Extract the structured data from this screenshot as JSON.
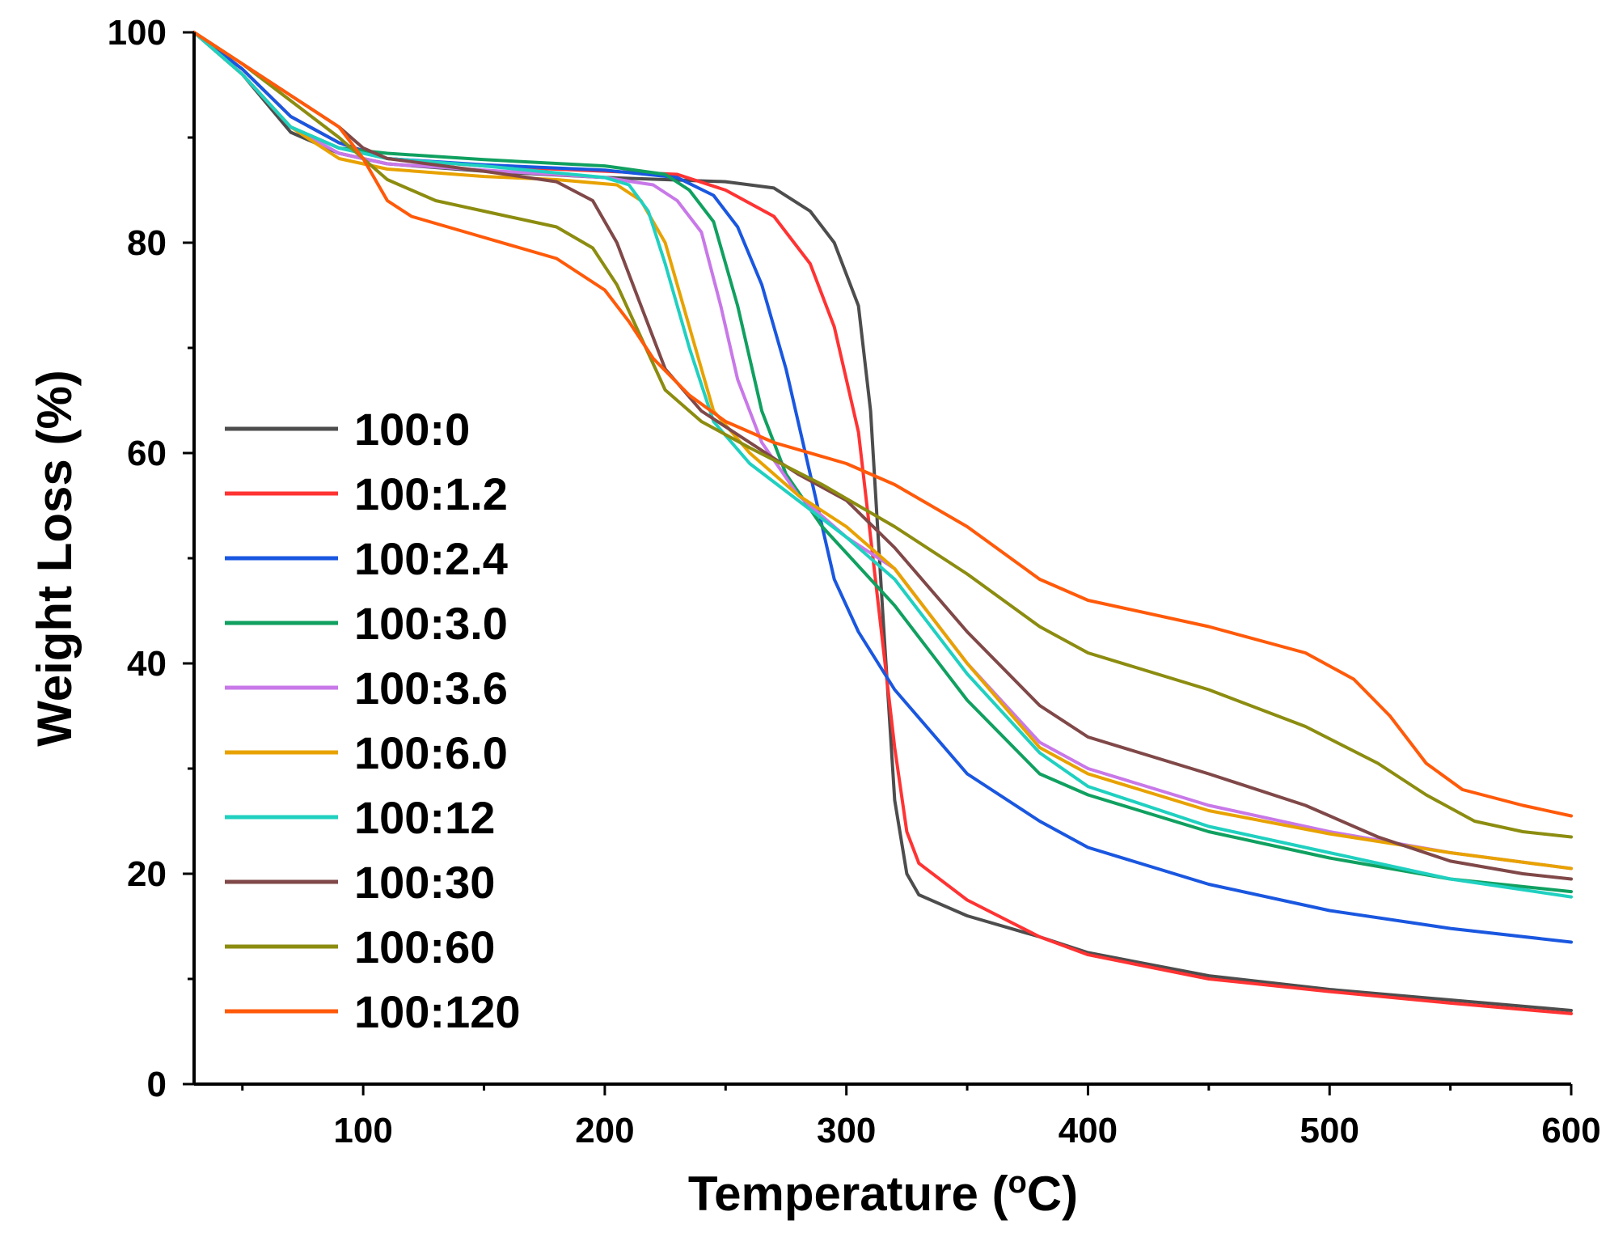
{
  "chart_data": {
    "type": "line",
    "title": "",
    "xlabel": "Temperature (",
    "xlabel_unit": "o",
    "xlabel_tail": "C)",
    "ylabel": "Weight Loss (%)",
    "xlim": [
      30,
      600
    ],
    "ylim": [
      0,
      100
    ],
    "x_ticks": [
      100,
      200,
      300,
      400,
      500,
      600
    ],
    "x_tick_labels": [
      "100",
      "200",
      "300",
      "400",
      "500",
      "600"
    ],
    "y_ticks": [
      0,
      20,
      40,
      60,
      80,
      100
    ],
    "y_tick_labels": [
      "0",
      "20",
      "40",
      "60",
      "80",
      "100"
    ],
    "legend_position": "left",
    "series": [
      {
        "name": "100:0",
        "color": "#4d4d4d",
        "points": [
          [
            30,
            100
          ],
          [
            50,
            96
          ],
          [
            70,
            90.5
          ],
          [
            90,
            88.5
          ],
          [
            110,
            87.5
          ],
          [
            150,
            86.8
          ],
          [
            200,
            86.2
          ],
          [
            250,
            85.8
          ],
          [
            270,
            85.2
          ],
          [
            285,
            83
          ],
          [
            295,
            80
          ],
          [
            305,
            74
          ],
          [
            310,
            64
          ],
          [
            315,
            45
          ],
          [
            320,
            27
          ],
          [
            325,
            20
          ],
          [
            330,
            18
          ],
          [
            350,
            16
          ],
          [
            380,
            14
          ],
          [
            400,
            12.5
          ],
          [
            450,
            10.3
          ],
          [
            500,
            9
          ],
          [
            550,
            8
          ],
          [
            600,
            7
          ]
        ]
      },
      {
        "name": "100:1.2",
        "color": "#ff3333",
        "points": [
          [
            30,
            100
          ],
          [
            50,
            96.5
          ],
          [
            70,
            92
          ],
          [
            90,
            89.5
          ],
          [
            110,
            88
          ],
          [
            150,
            87.3
          ],
          [
            200,
            86.8
          ],
          [
            230,
            86.5
          ],
          [
            250,
            85
          ],
          [
            270,
            82.5
          ],
          [
            285,
            78
          ],
          [
            295,
            72
          ],
          [
            305,
            62
          ],
          [
            310,
            52
          ],
          [
            315,
            42
          ],
          [
            320,
            32
          ],
          [
            325,
            24
          ],
          [
            330,
            21
          ],
          [
            350,
            17.5
          ],
          [
            380,
            14
          ],
          [
            400,
            12.3
          ],
          [
            450,
            10
          ],
          [
            500,
            8.8
          ],
          [
            550,
            7.7
          ],
          [
            600,
            6.7
          ]
        ]
      },
      {
        "name": "100:2.4",
        "color": "#1a57e0",
        "points": [
          [
            30,
            100
          ],
          [
            50,
            96.5
          ],
          [
            70,
            92
          ],
          [
            90,
            89.5
          ],
          [
            110,
            88
          ],
          [
            150,
            87.4
          ],
          [
            200,
            86.9
          ],
          [
            230,
            86.2
          ],
          [
            245,
            84.5
          ],
          [
            255,
            81.5
          ],
          [
            265,
            76
          ],
          [
            275,
            68
          ],
          [
            285,
            58
          ],
          [
            295,
            48
          ],
          [
            305,
            43
          ],
          [
            320,
            37.5
          ],
          [
            350,
            29.5
          ],
          [
            380,
            25
          ],
          [
            400,
            22.5
          ],
          [
            450,
            19
          ],
          [
            500,
            16.5
          ],
          [
            550,
            14.8
          ],
          [
            600,
            13.5
          ]
        ]
      },
      {
        "name": "100:3.0",
        "color": "#10a060",
        "points": [
          [
            30,
            100
          ],
          [
            50,
            96
          ],
          [
            70,
            91
          ],
          [
            90,
            89
          ],
          [
            110,
            88.5
          ],
          [
            150,
            87.9
          ],
          [
            200,
            87.3
          ],
          [
            225,
            86.5
          ],
          [
            235,
            85
          ],
          [
            245,
            82
          ],
          [
            255,
            74
          ],
          [
            265,
            64
          ],
          [
            275,
            58
          ],
          [
            290,
            53
          ],
          [
            300,
            50.5
          ],
          [
            320,
            45.5
          ],
          [
            350,
            36.5
          ],
          [
            380,
            29.5
          ],
          [
            400,
            27.5
          ],
          [
            450,
            24
          ],
          [
            500,
            21.5
          ],
          [
            550,
            19.5
          ],
          [
            600,
            18.3
          ]
        ]
      },
      {
        "name": "100:3.6",
        "color": "#c878e8",
        "points": [
          [
            30,
            100
          ],
          [
            50,
            96
          ],
          [
            70,
            91
          ],
          [
            90,
            88.5
          ],
          [
            110,
            87.5
          ],
          [
            150,
            86.9
          ],
          [
            200,
            86.2
          ],
          [
            220,
            85.5
          ],
          [
            230,
            84
          ],
          [
            240,
            81
          ],
          [
            248,
            74
          ],
          [
            255,
            67
          ],
          [
            265,
            61
          ],
          [
            280,
            56
          ],
          [
            300,
            52
          ],
          [
            320,
            49
          ],
          [
            350,
            40
          ],
          [
            380,
            32.5
          ],
          [
            400,
            30
          ],
          [
            450,
            26.5
          ],
          [
            500,
            24
          ],
          [
            550,
            22
          ],
          [
            600,
            20.5
          ]
        ]
      },
      {
        "name": "100:6.0",
        "color": "#e8a200",
        "points": [
          [
            30,
            100
          ],
          [
            50,
            96
          ],
          [
            70,
            91
          ],
          [
            90,
            88
          ],
          [
            110,
            87
          ],
          [
            150,
            86.3
          ],
          [
            180,
            86
          ],
          [
            205,
            85.5
          ],
          [
            215,
            84
          ],
          [
            225,
            80
          ],
          [
            235,
            72
          ],
          [
            245,
            64
          ],
          [
            260,
            60
          ],
          [
            280,
            56
          ],
          [
            300,
            53
          ],
          [
            320,
            49
          ],
          [
            350,
            40
          ],
          [
            380,
            32
          ],
          [
            400,
            29.5
          ],
          [
            450,
            26
          ],
          [
            500,
            23.8
          ],
          [
            550,
            22
          ],
          [
            600,
            20.5
          ]
        ]
      },
      {
        "name": "100:12",
        "color": "#20d0c0",
        "points": [
          [
            30,
            100
          ],
          [
            50,
            96
          ],
          [
            70,
            91
          ],
          [
            90,
            89
          ],
          [
            110,
            88
          ],
          [
            150,
            87.3
          ],
          [
            200,
            86.2
          ],
          [
            210,
            85.5
          ],
          [
            218,
            83
          ],
          [
            225,
            78
          ],
          [
            235,
            70
          ],
          [
            245,
            63
          ],
          [
            260,
            59
          ],
          [
            280,
            55.5
          ],
          [
            300,
            52
          ],
          [
            320,
            48
          ],
          [
            350,
            39
          ],
          [
            380,
            31.5
          ],
          [
            400,
            28.3
          ],
          [
            450,
            24.5
          ],
          [
            500,
            22
          ],
          [
            550,
            19.5
          ],
          [
            600,
            17.8
          ]
        ]
      },
      {
        "name": "100:30",
        "color": "#804848",
        "points": [
          [
            30,
            100
          ],
          [
            50,
            97
          ],
          [
            70,
            94
          ],
          [
            90,
            91
          ],
          [
            100,
            89
          ],
          [
            110,
            88
          ],
          [
            150,
            86.8
          ],
          [
            180,
            85.8
          ],
          [
            195,
            84
          ],
          [
            205,
            80
          ],
          [
            215,
            74
          ],
          [
            225,
            68
          ],
          [
            240,
            64
          ],
          [
            260,
            61
          ],
          [
            280,
            58
          ],
          [
            300,
            55.5
          ],
          [
            320,
            51
          ],
          [
            350,
            43
          ],
          [
            380,
            36
          ],
          [
            400,
            33
          ],
          [
            450,
            29.5
          ],
          [
            490,
            26.5
          ],
          [
            520,
            23.5
          ],
          [
            550,
            21.2
          ],
          [
            580,
            20
          ],
          [
            600,
            19.5
          ]
        ]
      },
      {
        "name": "100:60",
        "color": "#8c8c10",
        "points": [
          [
            30,
            100
          ],
          [
            50,
            97
          ],
          [
            70,
            93.5
          ],
          [
            90,
            90
          ],
          [
            100,
            88
          ],
          [
            110,
            86
          ],
          [
            130,
            84
          ],
          [
            150,
            83
          ],
          [
            180,
            81.5
          ],
          [
            195,
            79.5
          ],
          [
            205,
            76
          ],
          [
            215,
            71
          ],
          [
            225,
            66
          ],
          [
            240,
            63
          ],
          [
            260,
            60.5
          ],
          [
            290,
            57
          ],
          [
            320,
            53
          ],
          [
            350,
            48.5
          ],
          [
            380,
            43.5
          ],
          [
            400,
            41
          ],
          [
            450,
            37.5
          ],
          [
            490,
            34
          ],
          [
            520,
            30.5
          ],
          [
            540,
            27.5
          ],
          [
            560,
            25
          ],
          [
            580,
            24
          ],
          [
            600,
            23.5
          ]
        ]
      },
      {
        "name": "100:120",
        "color": "#ff5a0a",
        "points": [
          [
            30,
            100
          ],
          [
            50,
            97
          ],
          [
            70,
            94
          ],
          [
            90,
            91
          ],
          [
            100,
            88
          ],
          [
            110,
            84
          ],
          [
            120,
            82.5
          ],
          [
            150,
            80.5
          ],
          [
            180,
            78.5
          ],
          [
            200,
            75.5
          ],
          [
            210,
            72.5
          ],
          [
            220,
            69
          ],
          [
            235,
            65.5
          ],
          [
            250,
            63
          ],
          [
            270,
            61
          ],
          [
            300,
            59
          ],
          [
            320,
            57
          ],
          [
            350,
            53
          ],
          [
            380,
            48
          ],
          [
            400,
            46
          ],
          [
            450,
            43.5
          ],
          [
            490,
            41
          ],
          [
            510,
            38.5
          ],
          [
            525,
            35
          ],
          [
            540,
            30.5
          ],
          [
            555,
            28
          ],
          [
            580,
            26.5
          ],
          [
            600,
            25.5
          ]
        ]
      }
    ]
  }
}
